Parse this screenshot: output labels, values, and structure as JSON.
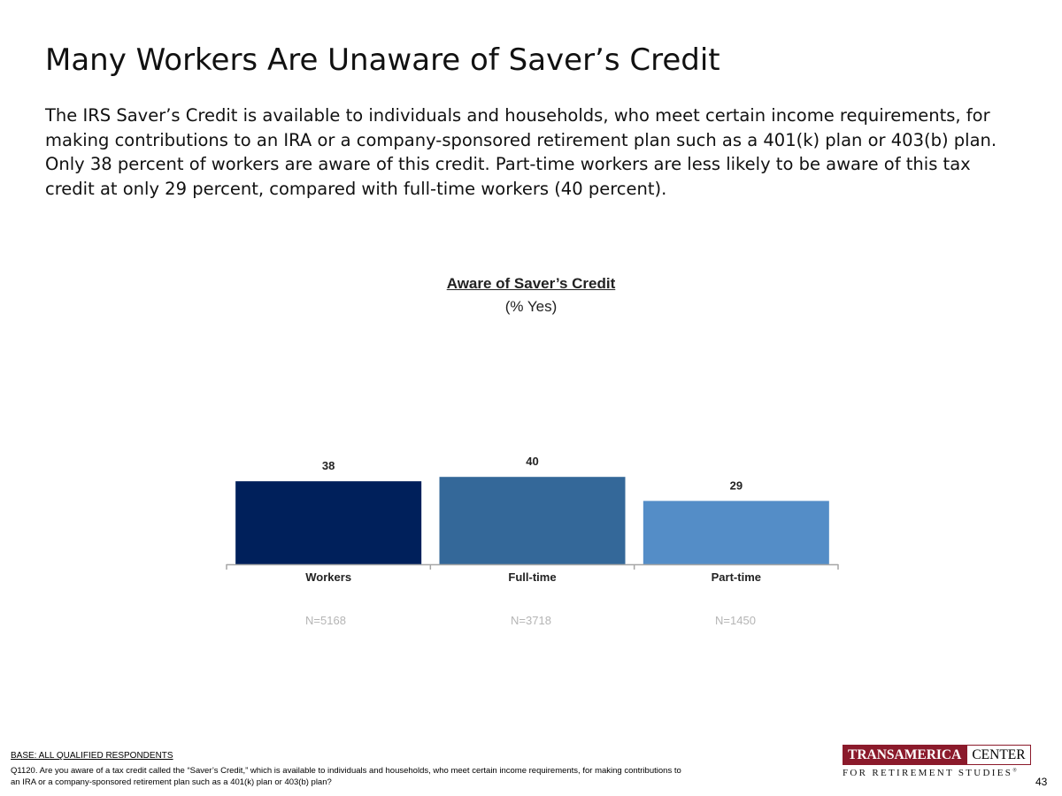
{
  "slide": {
    "title": "Many Workers Are Unaware of Saver’s Credit",
    "intro": "The IRS Saver’s Credit is available to individuals and households, who meet certain income requirements, for making contributions to an IRA or a company-sponsored retirement plan such as a 401(k) plan or 403(b) plan. Only 38 percent of workers are aware of this credit. Part-time workers are less likely to be aware of this tax credit at only 29 percent, compared with full-time workers (40 percent).",
    "page_number": "43"
  },
  "chart_data": {
    "type": "bar",
    "title": "Aware of Saver’s Credit",
    "subtitle": "(% Yes)",
    "categories": [
      "Workers",
      "Full-time",
      "Part-time"
    ],
    "values": [
      38,
      40,
      29
    ],
    "sample_sizes": [
      "N=5168",
      "N=3718",
      "N=1450"
    ],
    "colors": [
      "#00205b",
      "#346899",
      "#548dc7"
    ],
    "ylim": [
      0,
      100
    ],
    "grid": false,
    "legend": "none"
  },
  "footer": {
    "base": "BASE: ALL QUALIFIED RESPONDENTS",
    "question": "Q1120. Are you aware of a tax credit called the “Saver’s Credit,” which is available to individuals and households, who meet certain income requirements, for making contributions to an IRA or a company-sponsored retirement plan such as a 401(k) plan or 403(b) plan?"
  },
  "logo": {
    "brand": "TRANSAMERICA",
    "center": "CENTER",
    "tagline": "FOR RETIREMENT STUDIES",
    "brand_color": "#8b1a2b"
  }
}
